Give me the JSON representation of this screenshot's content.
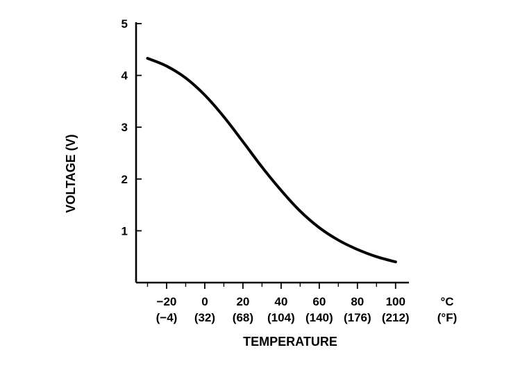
{
  "chart_data": {
    "type": "line",
    "title": "",
    "xlabel": "TEMPERATURE",
    "ylabel": "VOLTAGE (V)",
    "x_unit_primary": "°C",
    "x_unit_secondary": "(°F)",
    "xlim": [
      -36,
      107
    ],
    "ylim": [
      0,
      5
    ],
    "x_ticks": [
      {
        "value": -20,
        "label": "−20",
        "sublabel": "(−4)"
      },
      {
        "value": 0,
        "label": "0",
        "sublabel": "(32)"
      },
      {
        "value": 20,
        "label": "20",
        "sublabel": "(68)"
      },
      {
        "value": 40,
        "label": "40",
        "sublabel": "(104)"
      },
      {
        "value": 60,
        "label": "60",
        "sublabel": "(140)"
      },
      {
        "value": 80,
        "label": "80",
        "sublabel": "(176)"
      },
      {
        "value": 100,
        "label": "100",
        "sublabel": "(212)"
      }
    ],
    "x_minor_ticks": [
      -30,
      -10,
      10,
      30,
      50,
      70,
      90
    ],
    "y_ticks": [
      {
        "value": 1,
        "label": "1"
      },
      {
        "value": 2,
        "label": "2"
      },
      {
        "value": 3,
        "label": "3"
      },
      {
        "value": 4,
        "label": "4"
      },
      {
        "value": 5,
        "label": "5"
      }
    ],
    "series": [
      {
        "name": "Voltage",
        "x": [
          -30,
          -20,
          -10,
          0,
          10,
          20,
          30,
          40,
          50,
          60,
          70,
          80,
          90,
          100
        ],
        "y": [
          4.33,
          4.18,
          3.95,
          3.62,
          3.2,
          2.72,
          2.23,
          1.78,
          1.38,
          1.06,
          0.82,
          0.64,
          0.5,
          0.4
        ]
      }
    ]
  }
}
